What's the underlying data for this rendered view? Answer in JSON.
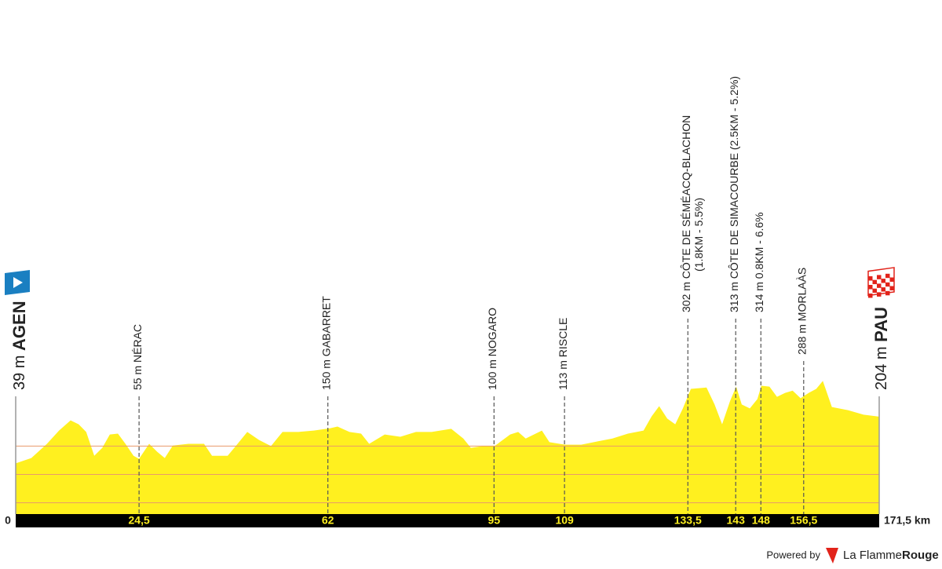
{
  "chart_data": {
    "type": "profile",
    "color": "#fff01f",
    "grid_color": "#e89a6a",
    "x": [
      0,
      3.1,
      6.2,
      8.6,
      10.9,
      12.5,
      14.0,
      15.6,
      17.2,
      18.7,
      20.3,
      21.8,
      23.4,
      24.5,
      26.5,
      28.1,
      29.6,
      31.2,
      34.3,
      37.4,
      39.0,
      42.1,
      43.7,
      46.0,
      48.3,
      50.7,
      53.0,
      56.1,
      59.2,
      62.4,
      63.9,
      66.3,
      68.6,
      70.2,
      73.3,
      76.4,
      79.5,
      82.6,
      86.5,
      88.9,
      90.4,
      92.8,
      95.1,
      98.2,
      99.8,
      101.3,
      104.5,
      106.0,
      109.1,
      112.3,
      115.4,
      118.5,
      121.6,
      124.7,
      126.3,
      127.8,
      129.4,
      131.0,
      132.5,
      134.1,
      137.2,
      138.8,
      140.3,
      141.9,
      143.1,
      144.2,
      145.8,
      147.3,
      148.1,
      149.7,
      151.2,
      152.8,
      154.3,
      155.9,
      157.5,
      159.0,
      160.3,
      162.1,
      165.3,
      168.4,
      171.5
    ],
    "values": [
      39,
      58,
      108,
      155,
      191,
      177,
      150,
      66,
      94,
      141,
      144,
      108,
      66,
      55,
      108,
      80,
      58,
      102,
      108,
      108,
      66,
      66,
      100,
      150,
      122,
      100,
      150,
      150,
      155,
      163,
      169,
      150,
      144,
      108,
      141,
      133,
      150,
      150,
      161,
      127,
      94,
      100,
      100,
      141,
      150,
      127,
      155,
      114,
      105,
      105,
      116,
      127,
      144,
      155,
      205,
      241,
      197,
      177,
      233,
      302,
      307,
      247,
      177,
      260,
      310,
      247,
      233,
      266,
      313,
      310,
      274,
      288,
      296,
      269,
      288,
      302,
      330,
      238,
      227,
      211,
      204
    ],
    "xlim": [
      0,
      171.5
    ],
    "ylim": [
      -140,
      345
    ],
    "gridlines": [
      -100,
      0,
      100
    ],
    "xticks": [
      0,
      {
        "value": 24.5,
        "label": "24,5"
      },
      62,
      95,
      109,
      {
        "value": 133.5,
        "label": "133,5"
      },
      143,
      148,
      {
        "value": 156.5,
        "label": "156,5"
      },
      {
        "value": 171.5,
        "label": "171,5 km"
      }
    ],
    "waypoints": [
      {
        "name": "55 m NÉRAC"
      },
      {
        "name": "150 m GABARRET"
      },
      {
        "name": "100 m NOGARO"
      },
      {
        "name": "113 m RISCLE"
      },
      {
        "name": "302 m CÔTE DE SÉMÉACQ-BLACHON",
        "detail": "(1.8KM - 5.5%)"
      },
      {
        "name": "313 m CÔTE DE SIMACOURBE (2.5KM - 5.2%)"
      },
      {
        "name": "314 m 0.8KM - 6.6%"
      },
      {
        "name": "288 m MORLAÀS"
      }
    ],
    "start": {
      "elevation_label": "39 m",
      "name": "AGEN"
    },
    "finish": {
      "elevation_label": "204 m",
      "name": "PAU"
    }
  },
  "footer": {
    "powered_by": "Powered by",
    "brand_light": "La Flamme",
    "brand_bold": "Rouge"
  }
}
